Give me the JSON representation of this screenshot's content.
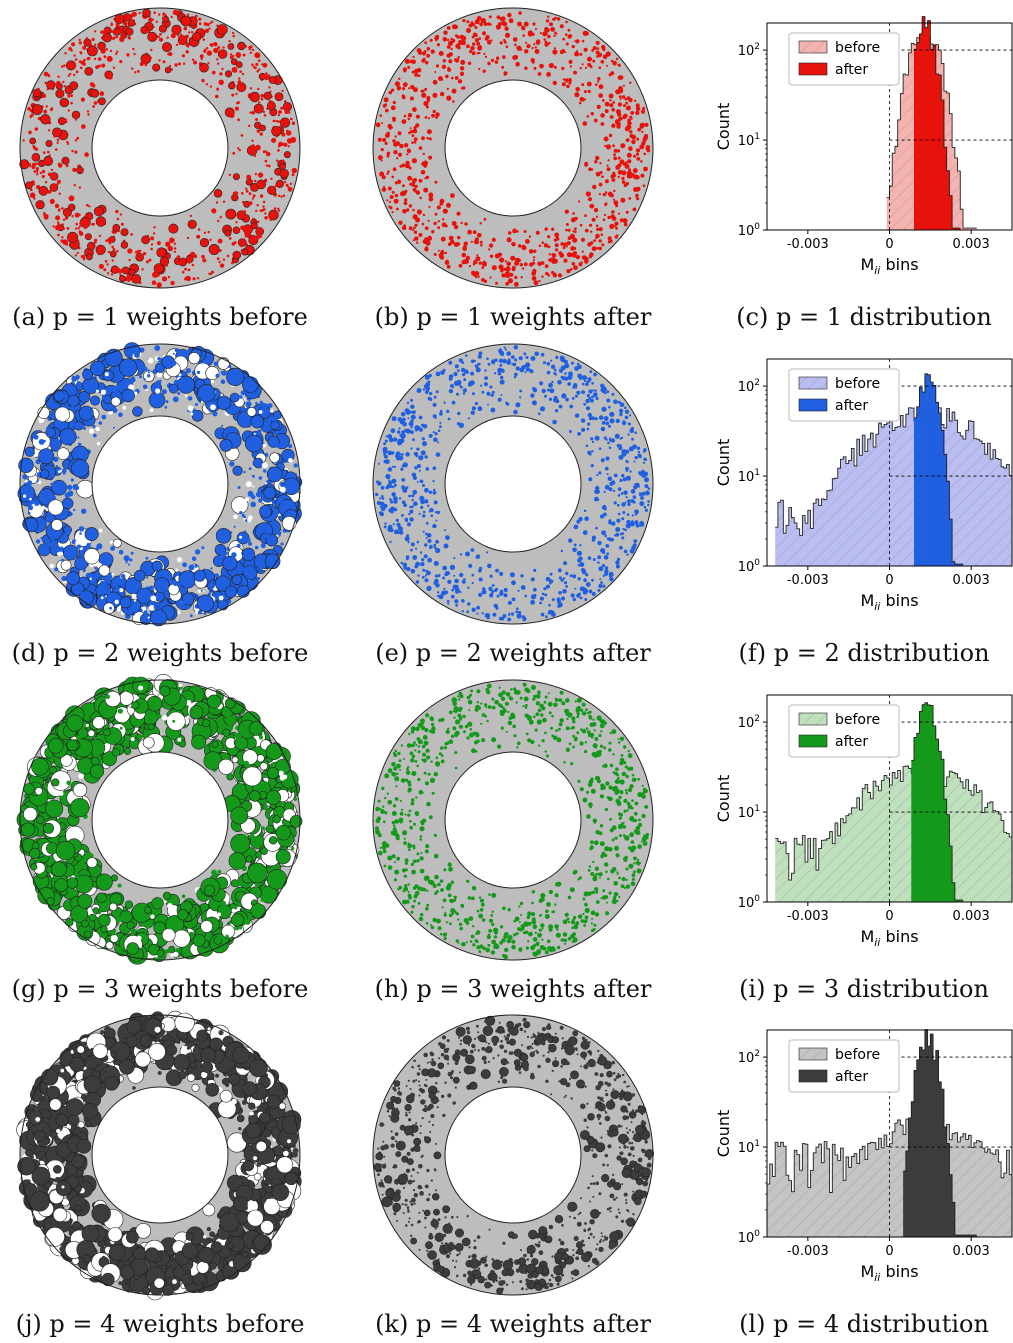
{
  "rows": [
    {
      "p": "1",
      "color": "#e8120c",
      "light": "#f5b3b0",
      "caption_a": "(a) p = 1 weights before",
      "caption_b": "(b) p = 1 weights after",
      "caption_c": "(c) p = 1 distribution"
    },
    {
      "p": "2",
      "color": "#1f5fe0",
      "light": "#b9bdf2",
      "caption_a": "(d) p = 2 weights before",
      "caption_b": "(e) p = 2 weights after",
      "caption_c": "(f) p = 2 distribution"
    },
    {
      "p": "3",
      "color": "#14991a",
      "light": "#bfe0bd",
      "caption_a": "(g) p = 3 weights before",
      "caption_b": "(h) p = 3 weights after",
      "caption_c": "(i) p = 3 distribution"
    },
    {
      "p": "4",
      "color": "#3c3c3c",
      "light": "#c4c4c4",
      "caption_a": "(j) p = 4 weights before",
      "caption_b": "(k) p = 4 weights after",
      "caption_c": "(l) p = 4 distribution"
    }
  ],
  "mesh_fill": "#bdbdbd",
  "chart_data": [
    {
      "type": "bar",
      "panel": "c",
      "xlabel": "M_ii bins",
      "ylabel": "Count",
      "yscale": "log",
      "xlim": [
        -0.0045,
        0.0045
      ],
      "ylim": [
        1,
        200
      ],
      "xticks": [
        "-0.003",
        "0",
        "0.003"
      ],
      "yticks": [
        "10^0",
        "10^1",
        "10^2"
      ],
      "series": [
        {
          "name": "before",
          "hatch": true,
          "support": [
            -0.0001,
            0.0032
          ],
          "peak_x": 0.0013,
          "peak": 170
        },
        {
          "name": "after",
          "hatch": false,
          "support": [
            0.0009,
            0.0026
          ],
          "peak_x": 0.0013,
          "peak": 185
        }
      ]
    },
    {
      "type": "bar",
      "panel": "f",
      "xlabel": "M_ii bins",
      "ylabel": "Count",
      "yscale": "log",
      "xlim": [
        -0.0045,
        0.0045
      ],
      "ylim": [
        1,
        200
      ],
      "xticks": [
        "-0.003",
        "0",
        "0.003"
      ],
      "yticks": [
        "10^0",
        "10^1",
        "10^2"
      ],
      "series": [
        {
          "name": "before",
          "hatch": true,
          "support": [
            -0.0042,
            0.0045
          ],
          "peak_x": 0.0013,
          "peak": 50
        },
        {
          "name": "after",
          "hatch": false,
          "support": [
            0.0009,
            0.0027
          ],
          "peak_x": 0.0014,
          "peak": 115
        }
      ]
    },
    {
      "type": "bar",
      "panel": "i",
      "xlabel": "M_ii bins",
      "ylabel": "Count",
      "yscale": "log",
      "xlim": [
        -0.0045,
        0.0045
      ],
      "ylim": [
        1,
        200
      ],
      "xticks": [
        "-0.003",
        "0",
        "0.003"
      ],
      "yticks": [
        "10^0",
        "10^1",
        "10^2"
      ],
      "series": [
        {
          "name": "before",
          "hatch": true,
          "support": [
            -0.0042,
            0.0045
          ],
          "peak_x": 0.0012,
          "peak": 30
        },
        {
          "name": "after",
          "hatch": false,
          "support": [
            0.0008,
            0.0027
          ],
          "peak_x": 0.0014,
          "peak": 140
        }
      ]
    },
    {
      "type": "bar",
      "panel": "l",
      "xlabel": "M_ii bins",
      "ylabel": "Count",
      "yscale": "log",
      "xlim": [
        -0.0045,
        0.0045
      ],
      "ylim": [
        1,
        200
      ],
      "xticks": [
        "-0.003",
        "0",
        "0.003"
      ],
      "yticks": [
        "10^0",
        "10^1",
        "10^2"
      ],
      "series": [
        {
          "name": "before",
          "hatch": true,
          "support": [
            -0.0045,
            0.0045
          ],
          "peak_x": 0.0013,
          "peak": 18
        },
        {
          "name": "after",
          "hatch": false,
          "support": [
            0.0005,
            0.0032
          ],
          "peak_x": 0.0014,
          "peak": 170
        }
      ]
    }
  ]
}
